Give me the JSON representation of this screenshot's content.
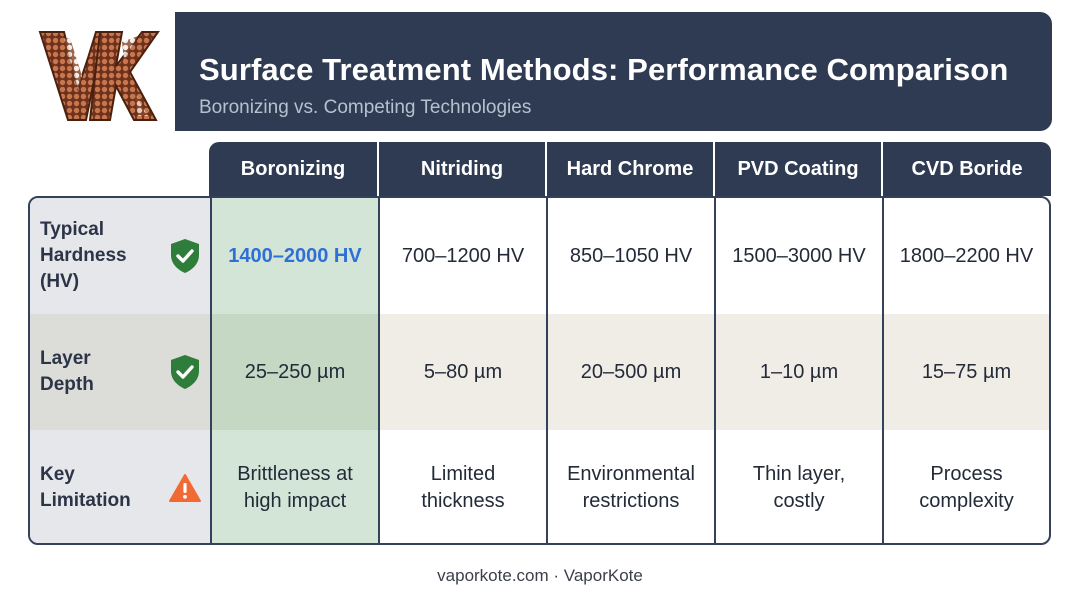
{
  "header": {
    "title": "Surface Treatment Methods: Performance Comparison",
    "subtitle": "Boronizing vs. Competing Technologies"
  },
  "logo": {
    "letters": "VK",
    "colors": {
      "fill": "#7a3a22",
      "dots": "#c7764e",
      "light": "#f2f2f2"
    }
  },
  "columns": [
    "Boronizing",
    "Nitriding",
    "Hard Chrome",
    "PVD Coating",
    "CVD Boride"
  ],
  "rows": [
    {
      "label": "Typical Hardness (HV)",
      "icon": "shield-check-icon",
      "values": [
        "1400–2000 HV",
        "700–1200 HV",
        "850–1050 HV",
        "1500–3000 HV",
        "1800–2200 HV"
      ]
    },
    {
      "label": "Layer Depth",
      "icon": "shield-check-icon",
      "values": [
        "25–250 µm",
        "5–80 µm",
        "20–500 µm",
        "1–10 µm",
        "15–75 µm"
      ]
    },
    {
      "label": "Key Limitation",
      "icon": "warning-triangle-icon",
      "values": [
        "Brittleness at high impact",
        "Limited thickness",
        "Environmental restrictions",
        "Thin layer, costly",
        "Process complexity"
      ]
    }
  ],
  "colors": {
    "header_bg": "#2e3b52",
    "highlight_col": "#d3e5d6",
    "highlight_text": "#2f6fd6",
    "check_green": "#2e7d3a",
    "warning_orange": "#f26a33"
  },
  "footer": "vaporkote.com · VaporKote"
}
